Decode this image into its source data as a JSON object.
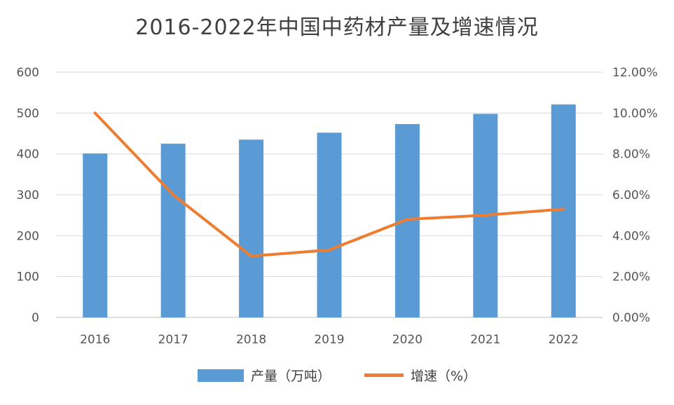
{
  "chart_data": {
    "type": "bar+line",
    "title": "2016-2022年中国中药材产量及增速情况",
    "categories": [
      "2016",
      "2017",
      "2018",
      "2019",
      "2020",
      "2021",
      "2022"
    ],
    "series": [
      {
        "name": "产量（万吨）",
        "type": "bar",
        "axis": "left",
        "color": "#5b9bd5",
        "values": [
          401,
          425,
          435,
          452,
          473,
          498,
          521
        ]
      },
      {
        "name": "增速（%）",
        "type": "line",
        "axis": "right",
        "color": "#ed7d31",
        "values": [
          10.0,
          6.0,
          3.0,
          3.3,
          4.8,
          5.0,
          5.3
        ]
      }
    ],
    "y_left": {
      "ylim": [
        0,
        600
      ],
      "ticks": [
        "0",
        "100",
        "200",
        "300",
        "400",
        "500",
        "600"
      ]
    },
    "y_right": {
      "ylim": [
        0,
        12
      ],
      "ticks": [
        "0.00%",
        "2.00%",
        "4.00%",
        "6.00%",
        "8.00%",
        "10.00%",
        "12.00%"
      ]
    },
    "grid": true,
    "legend_position": "bottom"
  }
}
